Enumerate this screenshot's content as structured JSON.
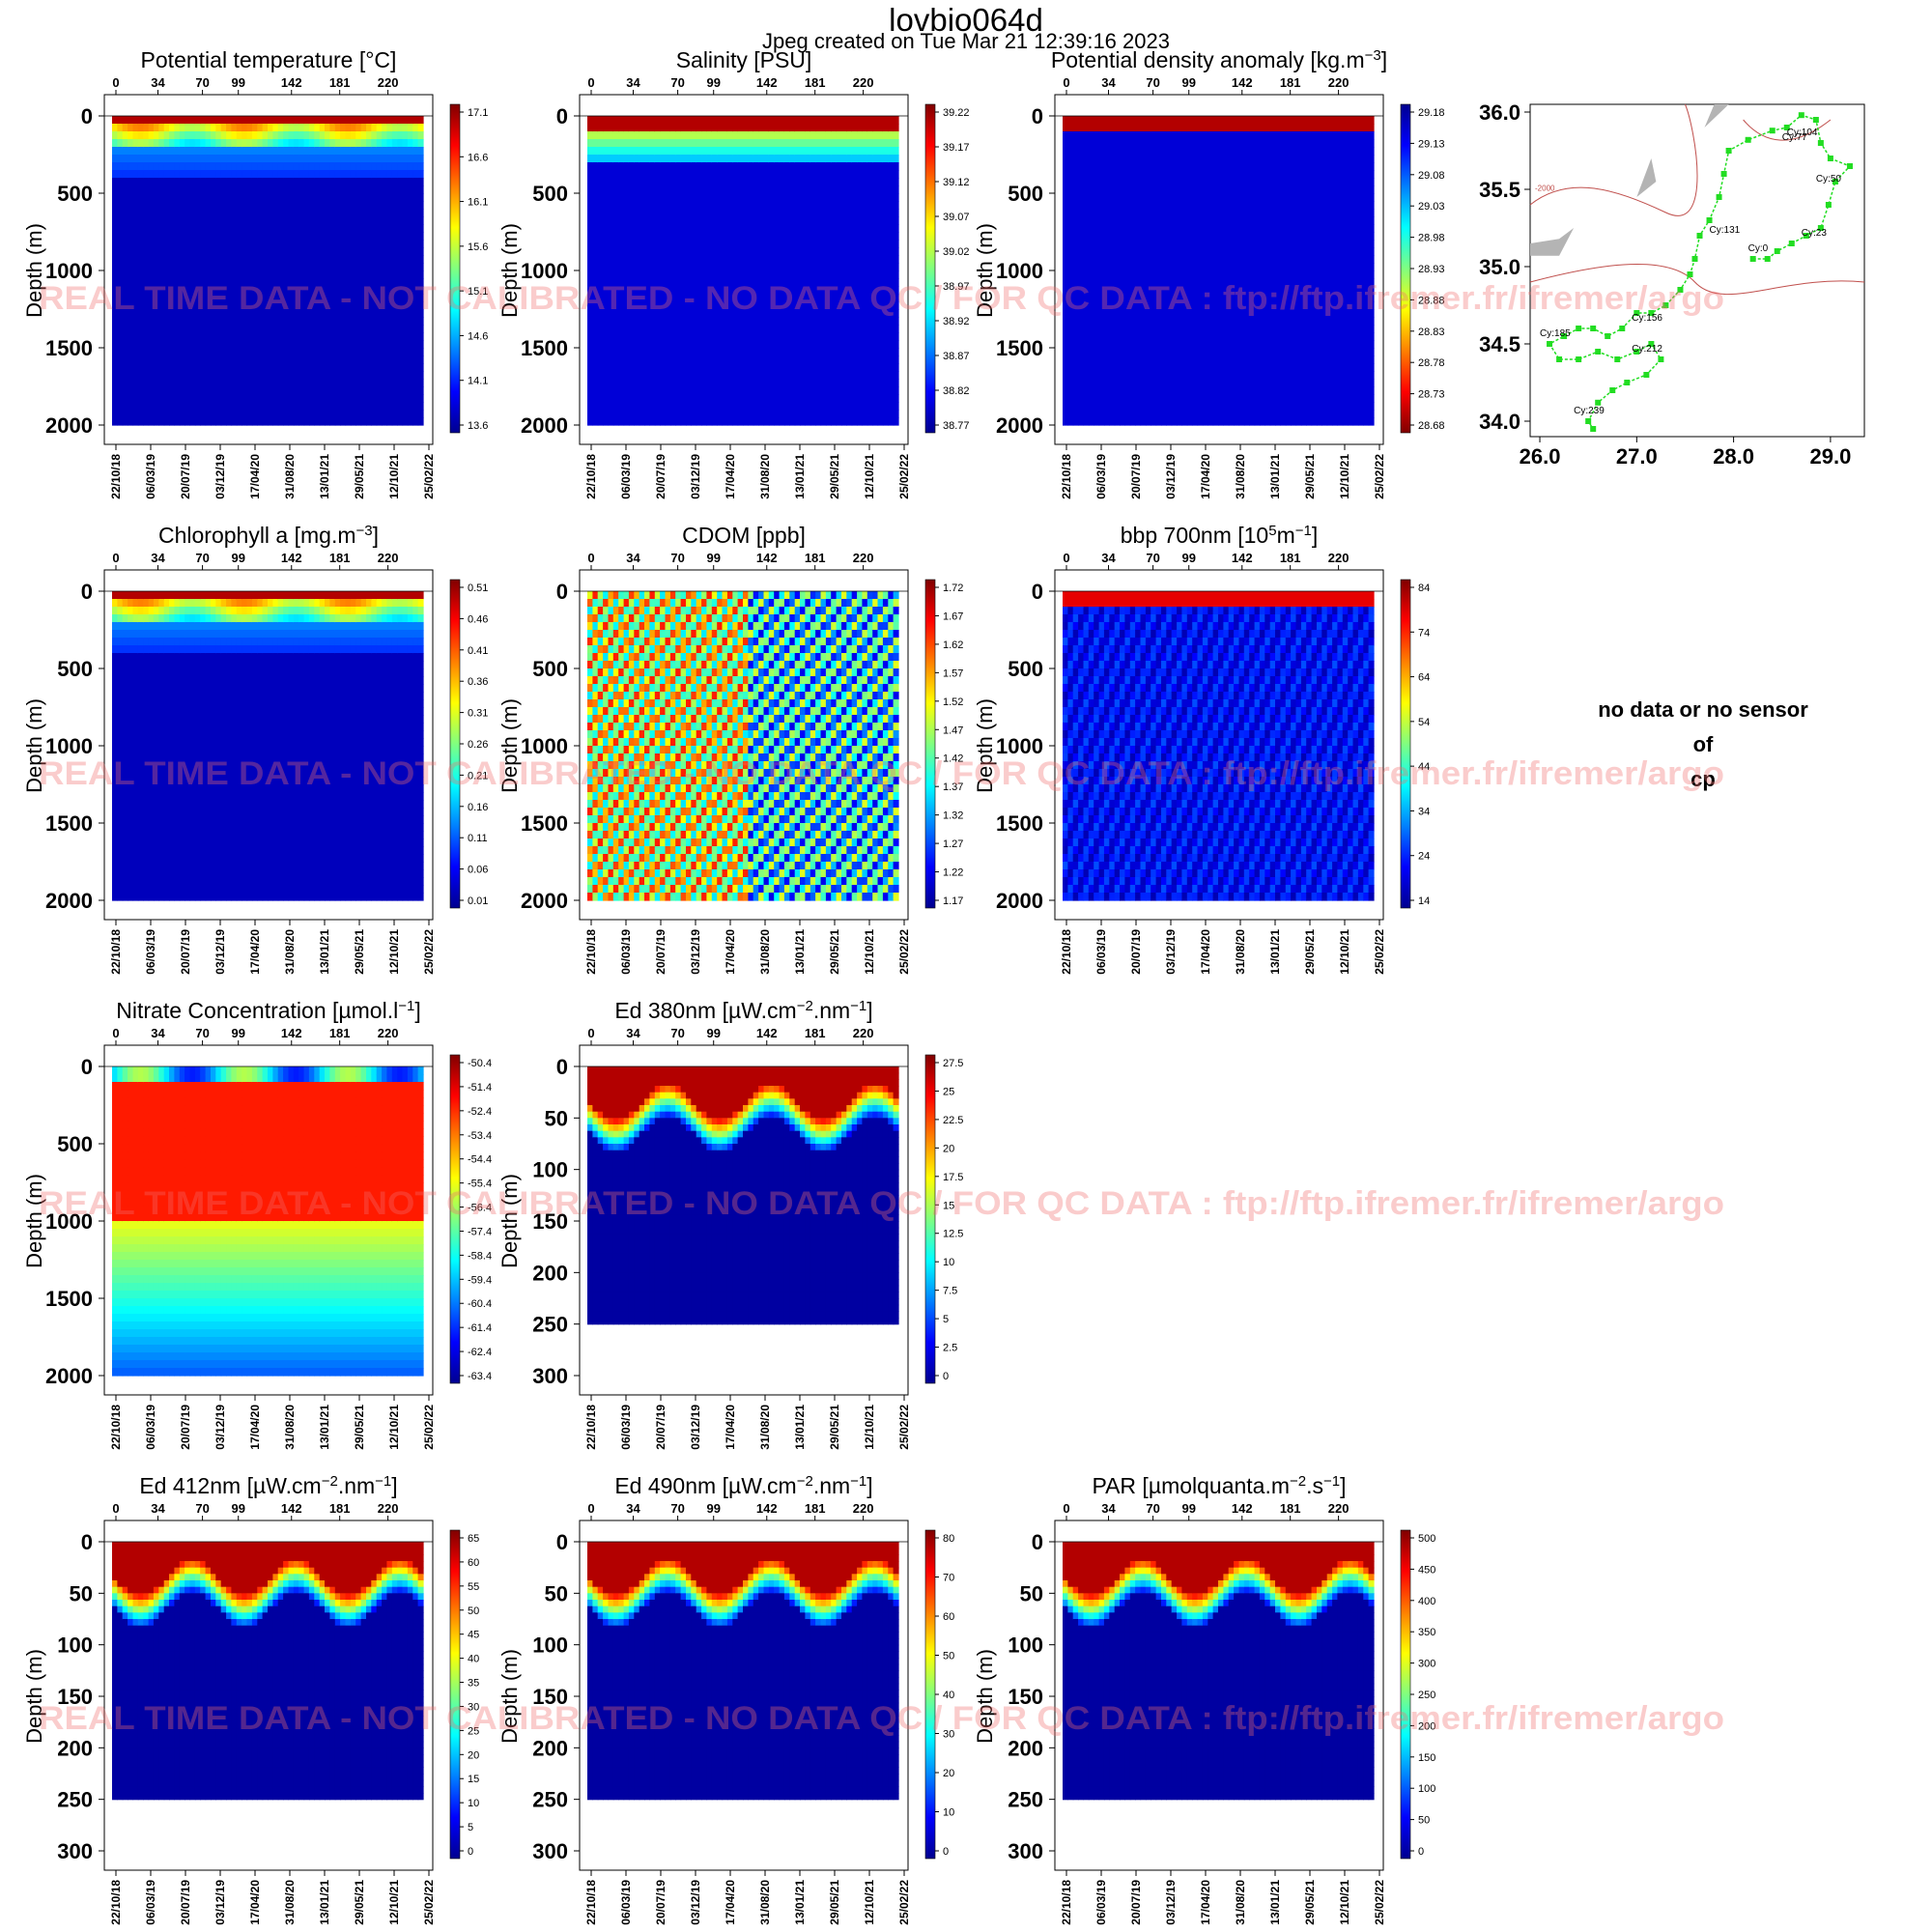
{
  "header": {
    "title": "lovbio064d",
    "subtitle": "Jpeg created on  Tue Mar 21 12:39:16 2023"
  },
  "watermark": "REAL TIME DATA - NOT CALIBRATED - NO DATA QC  /  FOR QC DATA : ftp://ftp.ifremer.fr/ifremer/argo",
  "common_axes": {
    "ylabel": "Depth (m)",
    "cycle_ticks": [
      "0",
      "34",
      "70",
      "99",
      "142",
      "181",
      "220"
    ],
    "date_ticks": [
      "22/10/18",
      "06/03/19",
      "20/07/19",
      "03/12/19",
      "17/04/20",
      "31/08/20",
      "13/01/21",
      "29/05/21",
      "12/10/21",
      "25/02/22"
    ]
  },
  "colors": {
    "colormap": [
      "#00008f",
      "#0000ff",
      "#0080ff",
      "#00ffff",
      "#80ff80",
      "#ffff00",
      "#ff8000",
      "#ff0000",
      "#800000"
    ],
    "track": "#22dd22",
    "contour_main": "#c0504d",
    "land": "#b4b4b4"
  },
  "chart_data": [
    {
      "type": "heatmap",
      "title": "Potential temperature [°C]",
      "ylabel": "Depth (m)",
      "y_ticks": [
        "0",
        "500",
        "1000",
        "1500",
        "2000"
      ],
      "ylim": [
        0,
        2000
      ],
      "data_bottom": 2000,
      "colorbar": [
        "17.1",
        "16.6",
        "16.1",
        "15.6",
        "15.1",
        "14.6",
        "14.1",
        "13.6"
      ]
    },
    {
      "type": "heatmap",
      "title": "Salinity [PSU]",
      "ylabel": "Depth (m)",
      "y_ticks": [
        "0",
        "500",
        "1000",
        "1500",
        "2000"
      ],
      "ylim": [
        0,
        2000
      ],
      "data_bottom": 2000,
      "colorbar": [
        "39.22",
        "39.17",
        "39.12",
        "39.07",
        "39.02",
        "38.97",
        "38.92",
        "38.87",
        "38.82",
        "38.77"
      ]
    },
    {
      "type": "heatmap",
      "title": "Potential density anomaly [kg.m",
      "title_sup": "−3",
      "title_end": "]",
      "ylabel": "Depth (m)",
      "y_ticks": [
        "0",
        "500",
        "1000",
        "1500",
        "2000"
      ],
      "ylim": [
        0,
        2000
      ],
      "data_bottom": 2000,
      "colorbar": [
        "29.18",
        "29.13",
        "29.08",
        "29.03",
        "28.98",
        "28.93",
        "28.88",
        "28.83",
        "28.78",
        "28.73",
        "28.68"
      ],
      "reversed": true
    },
    {
      "type": "heatmap",
      "title": "Chlorophyll a [mg.m",
      "title_sup": "−3",
      "title_end": "]",
      "ylabel": "Depth (m)",
      "y_ticks": [
        "0",
        "500",
        "1000",
        "1500",
        "2000"
      ],
      "ylim": [
        0,
        2000
      ],
      "data_bottom": 2000,
      "colorbar": [
        "0.51",
        "0.46",
        "0.41",
        "0.36",
        "0.31",
        "0.26",
        "0.21",
        "0.16",
        "0.11",
        "0.06",
        "0.01"
      ]
    },
    {
      "type": "heatmap",
      "title": "CDOM  [ppb]",
      "ylabel": "Depth (m)",
      "y_ticks": [
        "0",
        "500",
        "1000",
        "1500",
        "2000"
      ],
      "ylim": [
        0,
        2000
      ],
      "data_bottom": 2000,
      "colorbar": [
        "1.72",
        "1.67",
        "1.62",
        "1.57",
        "1.52",
        "1.47",
        "1.42",
        "1.37",
        "1.32",
        "1.27",
        "1.22",
        "1.17"
      ]
    },
    {
      "type": "heatmap",
      "title": "bbp 700nm [10",
      "title_sup": "5",
      "title_mid": "m",
      "title_sup2": "−1",
      "title_end": "]",
      "ylabel": "Depth (m)",
      "y_ticks": [
        "0",
        "500",
        "1000",
        "1500",
        "2000"
      ],
      "ylim": [
        0,
        2000
      ],
      "data_bottom": 2000,
      "colorbar": [
        "84",
        "74",
        "64",
        "54",
        "44",
        "34",
        "24",
        "14"
      ]
    },
    {
      "type": "heatmap",
      "title": "Nitrate Concentration [µmol.l",
      "title_sup": "−1",
      "title_end": "]",
      "ylabel": "Depth (m)",
      "y_ticks": [
        "0",
        "500",
        "1000",
        "1500",
        "2000"
      ],
      "ylim": [
        0,
        2000
      ],
      "data_bottom": 2000,
      "colorbar": [
        "-50.4",
        "-51.4",
        "-52.4",
        "-53.4",
        "-54.4",
        "-55.4",
        "-56.4",
        "-57.4",
        "-58.4",
        "-59.4",
        "-60.4",
        "-61.4",
        "-62.4",
        "-63.4"
      ]
    },
    {
      "type": "heatmap",
      "title": "Ed 380nm [µW.cm",
      "title_sup": "−2",
      "title_mid": ".nm",
      "title_sup2": "−1",
      "title_end": "]",
      "ylabel": "Depth (m)",
      "y_ticks": [
        "0",
        "50",
        "100",
        "150",
        "200",
        "250",
        "300"
      ],
      "ylim": [
        0,
        300
      ],
      "data_bottom": 250,
      "colorbar": [
        "27.5",
        "25",
        "22.5",
        "20",
        "17.5",
        "15",
        "12.5",
        "10",
        "7.5",
        "5",
        "2.5",
        "0"
      ]
    },
    {
      "type": "heatmap",
      "title": "Ed 412nm [µW.cm",
      "title_sup": "−2",
      "title_mid": ".nm",
      "title_sup2": "−1",
      "title_end": "]",
      "ylabel": "Depth (m)",
      "y_ticks": [
        "0",
        "50",
        "100",
        "150",
        "200",
        "250",
        "300"
      ],
      "ylim": [
        0,
        300
      ],
      "data_bottom": 250,
      "colorbar": [
        "65",
        "60",
        "55",
        "50",
        "45",
        "40",
        "35",
        "30",
        "25",
        "20",
        "15",
        "10",
        "5",
        "0"
      ]
    },
    {
      "type": "heatmap",
      "title": "Ed 490nm [µW.cm",
      "title_sup": "−2",
      "title_mid": ".nm",
      "title_sup2": "−1",
      "title_end": "]",
      "ylabel": "Depth (m)",
      "y_ticks": [
        "0",
        "50",
        "100",
        "150",
        "200",
        "250",
        "300"
      ],
      "ylim": [
        0,
        300
      ],
      "data_bottom": 250,
      "colorbar": [
        "80",
        "70",
        "60",
        "50",
        "40",
        "30",
        "20",
        "10",
        "0"
      ]
    },
    {
      "type": "heatmap",
      "title": "PAR [µmolquanta.m",
      "title_sup": "−2",
      "title_mid": ".s",
      "title_sup2": "−1",
      "title_end": "]",
      "ylabel": "Depth (m)",
      "y_ticks": [
        "0",
        "50",
        "100",
        "150",
        "200",
        "250",
        "300"
      ],
      "ylim": [
        0,
        300
      ],
      "data_bottom": 250,
      "colorbar": [
        "500",
        "450",
        "400",
        "350",
        "300",
        "250",
        "200",
        "150",
        "100",
        "50",
        "0"
      ]
    },
    {
      "type": "scatter",
      "title": "",
      "x_ticks": [
        "26.0",
        "27.0",
        "28.0",
        "29.0"
      ],
      "y_ticks": [
        "36.0",
        "35.5",
        "35.0",
        "34.5",
        "34.0"
      ],
      "xlim": [
        25.9,
        29.35
      ],
      "ylim": [
        33.9,
        36.05
      ],
      "contour_label": "-2000",
      "cycle_labels": [
        {
          "text": "Cy:104",
          "lon": 28.55,
          "lat": 35.85
        },
        {
          "text": "Cy:77",
          "lon": 28.5,
          "lat": 35.82
        },
        {
          "text": "Cy:50",
          "lon": 28.85,
          "lat": 35.55
        },
        {
          "text": "Cy:23",
          "lon": 28.7,
          "lat": 35.2
        },
        {
          "text": "Cy:0",
          "lon": 28.15,
          "lat": 35.1
        },
        {
          "text": "Cy:131",
          "lon": 27.75,
          "lat": 35.22
        },
        {
          "text": "Cy:156",
          "lon": 26.95,
          "lat": 34.65
        },
        {
          "text": "Cy:185",
          "lon": 26.0,
          "lat": 34.55
        },
        {
          "text": "Cy:212",
          "lon": 26.95,
          "lat": 34.45
        },
        {
          "text": "Cy:239",
          "lon": 26.35,
          "lat": 34.05
        }
      ],
      "track": [
        {
          "lon": 28.2,
          "lat": 35.05
        },
        {
          "lon": 28.35,
          "lat": 35.05
        },
        {
          "lon": 28.45,
          "lat": 35.1
        },
        {
          "lon": 28.6,
          "lat": 35.15
        },
        {
          "lon": 28.75,
          "lat": 35.2
        },
        {
          "lon": 28.9,
          "lat": 35.25
        },
        {
          "lon": 28.98,
          "lat": 35.4
        },
        {
          "lon": 29.05,
          "lat": 35.55
        },
        {
          "lon": 29.2,
          "lat": 35.65
        },
        {
          "lon": 29.0,
          "lat": 35.7
        },
        {
          "lon": 28.9,
          "lat": 35.8
        },
        {
          "lon": 28.85,
          "lat": 35.95
        },
        {
          "lon": 28.7,
          "lat": 35.98
        },
        {
          "lon": 28.55,
          "lat": 35.9
        },
        {
          "lon": 28.4,
          "lat": 35.88
        },
        {
          "lon": 28.15,
          "lat": 35.82
        },
        {
          "lon": 27.95,
          "lat": 35.75
        },
        {
          "lon": 27.9,
          "lat": 35.6
        },
        {
          "lon": 27.85,
          "lat": 35.45
        },
        {
          "lon": 27.75,
          "lat": 35.3
        },
        {
          "lon": 27.65,
          "lat": 35.2
        },
        {
          "lon": 27.6,
          "lat": 35.05
        },
        {
          "lon": 27.55,
          "lat": 34.95
        },
        {
          "lon": 27.45,
          "lat": 34.85
        },
        {
          "lon": 27.3,
          "lat": 34.75
        },
        {
          "lon": 27.15,
          "lat": 34.7
        },
        {
          "lon": 27.0,
          "lat": 34.7
        },
        {
          "lon": 26.85,
          "lat": 34.6
        },
        {
          "lon": 26.7,
          "lat": 34.55
        },
        {
          "lon": 26.55,
          "lat": 34.6
        },
        {
          "lon": 26.4,
          "lat": 34.6
        },
        {
          "lon": 26.25,
          "lat": 34.55
        },
        {
          "lon": 26.1,
          "lat": 34.5
        },
        {
          "lon": 26.2,
          "lat": 34.4
        },
        {
          "lon": 26.4,
          "lat": 34.4
        },
        {
          "lon": 26.6,
          "lat": 34.45
        },
        {
          "lon": 26.8,
          "lat": 34.4
        },
        {
          "lon": 27.0,
          "lat": 34.45
        },
        {
          "lon": 27.15,
          "lat": 34.5
        },
        {
          "lon": 27.25,
          "lat": 34.4
        },
        {
          "lon": 27.1,
          "lat": 34.3
        },
        {
          "lon": 26.9,
          "lat": 34.25
        },
        {
          "lon": 26.75,
          "lat": 34.2
        },
        {
          "lon": 26.6,
          "lat": 34.12
        },
        {
          "lon": 26.5,
          "lat": 34.0
        },
        {
          "lon": 26.55,
          "lat": 33.95
        }
      ]
    }
  ],
  "no_data_panel": {
    "line1": "no data or no sensor",
    "line2": "of",
    "line3": "cp"
  }
}
